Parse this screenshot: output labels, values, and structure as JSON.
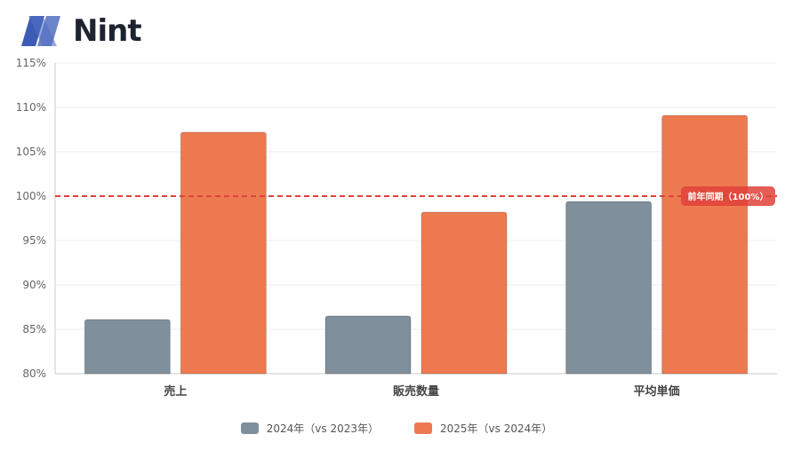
{
  "brand": {
    "name": "Nint",
    "logo_colors": [
      "#3b5bb5",
      "#1e2330"
    ]
  },
  "chart_data": {
    "type": "bar",
    "categories": [
      "売上",
      "販売数量",
      "平均単価"
    ],
    "series": [
      {
        "name": "2024年（vs 2023年）",
        "values": [
          86.1,
          86.5,
          99.4
        ],
        "color": "#7f8f9b"
      },
      {
        "name": "2025年（vs 2024年）",
        "values": [
          107.2,
          98.2,
          109.1
        ],
        "color": "#ee7a52"
      }
    ],
    "ylim": [
      80,
      115
    ],
    "yticks": [
      80,
      85,
      90,
      95,
      100,
      105,
      110,
      115
    ],
    "ytick_labels": [
      "80%",
      "85%",
      "90%",
      "95%",
      "100%",
      "105%",
      "110%",
      "115%"
    ],
    "reference_line": {
      "value": 100,
      "label": "前年同期（100%）",
      "color": "#e0413a"
    },
    "grid": true,
    "legend_position": "bottom"
  }
}
